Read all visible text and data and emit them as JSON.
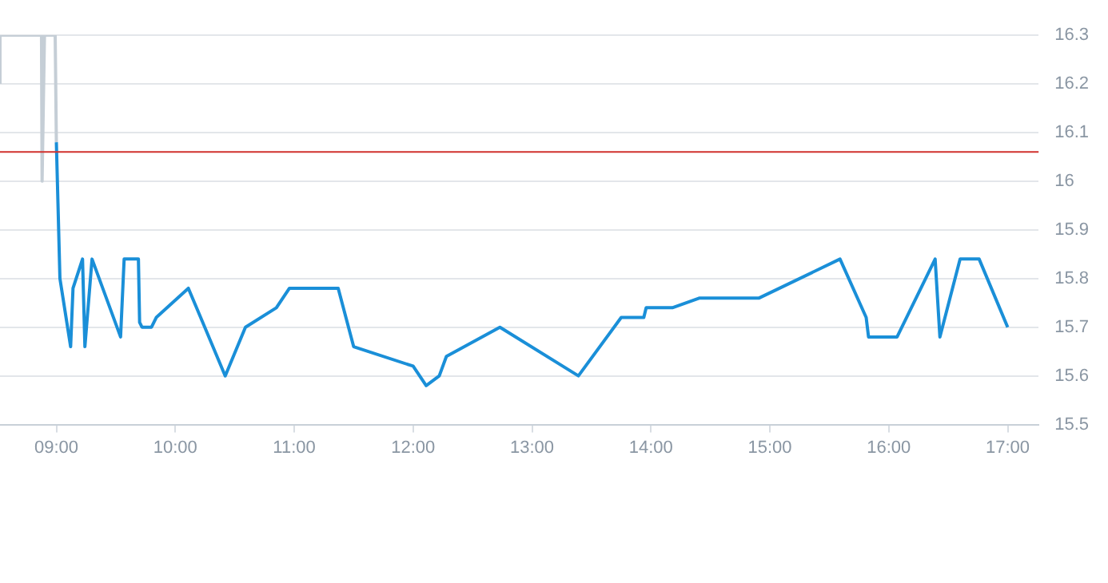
{
  "chart_data": {
    "type": "line",
    "xlim": [
      8.526,
      17.26
    ],
    "ylim": [
      15.5,
      16.3
    ],
    "xticks": [
      {
        "value": 9,
        "label": "09:00"
      },
      {
        "value": 10,
        "label": "10:00"
      },
      {
        "value": 11,
        "label": "11:00"
      },
      {
        "value": 12,
        "label": "12:00"
      },
      {
        "value": 13,
        "label": "13:00"
      },
      {
        "value": 14,
        "label": "14:00"
      },
      {
        "value": 15,
        "label": "15:00"
      },
      {
        "value": 16,
        "label": "16:00"
      },
      {
        "value": 17,
        "label": "17:00"
      }
    ],
    "yticks": [
      15.5,
      15.6,
      15.7,
      15.8,
      15.9,
      16,
      16.1,
      16.2,
      16.3
    ],
    "grid": "y",
    "legend": false,
    "marker": "none",
    "line_style": "solid",
    "ref_lines": [
      {
        "axis": "y",
        "value": 16.06,
        "color": "#d0312d"
      }
    ],
    "series": [
      {
        "color": "#c5ced6",
        "x": [
          8.526,
          8.526,
          8.875,
          8.88,
          8.9,
          8.99,
          9.0
        ],
        "values": [
          16.2,
          16.3,
          16.3,
          16.0,
          16.3,
          16.3,
          16.08
        ]
      },
      {
        "color": "#1a8fd8",
        "x": [
          9.0,
          9.03,
          9.12,
          9.14,
          9.22,
          9.24,
          9.3,
          9.54,
          9.57,
          9.69,
          9.7,
          9.72,
          9.8,
          9.84,
          10.11,
          10.42,
          10.59,
          10.85,
          10.96,
          11.37,
          11.5,
          12.0,
          12.11,
          12.22,
          12.28,
          12.73,
          13.39,
          13.75,
          13.94,
          13.96,
          14.18,
          14.41,
          14.91,
          15.59,
          15.81,
          15.83,
          16.07,
          16.39,
          16.43,
          16.6,
          16.76,
          17.0
        ],
        "values": [
          16.08,
          15.8,
          15.66,
          15.78,
          15.84,
          15.66,
          15.84,
          15.68,
          15.84,
          15.84,
          15.71,
          15.7,
          15.7,
          15.72,
          15.78,
          15.6,
          15.7,
          15.74,
          15.78,
          15.78,
          15.66,
          15.62,
          15.58,
          15.6,
          15.64,
          15.7,
          15.6,
          15.72,
          15.72,
          15.74,
          15.74,
          15.76,
          15.76,
          15.84,
          15.72,
          15.68,
          15.68,
          15.84,
          15.68,
          15.84,
          15.84,
          15.7
        ]
      }
    ]
  }
}
